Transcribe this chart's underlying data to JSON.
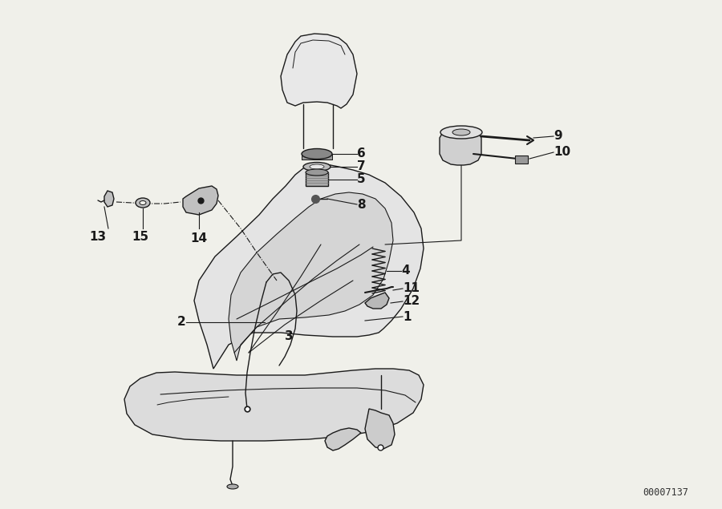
{
  "background_color": "#f0f0ea",
  "line_color": "#1a1a1a",
  "diagram_id": "00007137",
  "fig_width": 9.0,
  "fig_height": 6.35,
  "dpi": 100
}
